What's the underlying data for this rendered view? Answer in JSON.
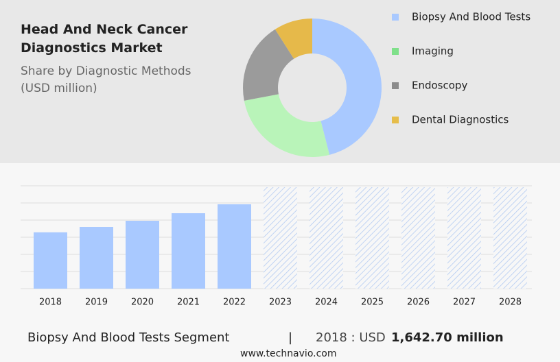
{
  "header": {
    "title": "Head And Neck Cancer Diagnostics Market",
    "subtitle": "Share by Diagnostic Methods (USD million)"
  },
  "chart_data": [
    {
      "type": "pie",
      "categories": [
        "Biopsy And Blood Tests",
        "Imaging",
        "Endoscopy",
        "Dental Diagnostics"
      ],
      "values": [
        46,
        26,
        19,
        9
      ],
      "colors": [
        "#a9c9ff",
        "#b9f4b9",
        "#9b9b9b",
        "#e6b94a"
      ],
      "legend_colors": [
        "#a9c9ff",
        "#7fe08a",
        "#8c8c8c",
        "#e6bd4a"
      ]
    },
    {
      "type": "bar",
      "categories": [
        "2018",
        "2019",
        "2020",
        "2021",
        "2022",
        "2023",
        "2024",
        "2025",
        "2026",
        "2027",
        "2028"
      ],
      "values": [
        1642.7,
        1800,
        1980,
        2200,
        2460,
        null,
        null,
        null,
        null,
        null,
        null
      ],
      "color": "#a9c9ff",
      "ylim": [
        0,
        3000
      ],
      "yticks": [
        0,
        500,
        1000,
        1500,
        2000,
        2500,
        3000
      ],
      "grid": true
    }
  ],
  "footer": {
    "segment": "Biopsy And Blood Tests Segment",
    "separator": "|",
    "year_currency": "2018 : USD",
    "value": "1,642.70 million",
    "source": "www.technavio.com"
  }
}
